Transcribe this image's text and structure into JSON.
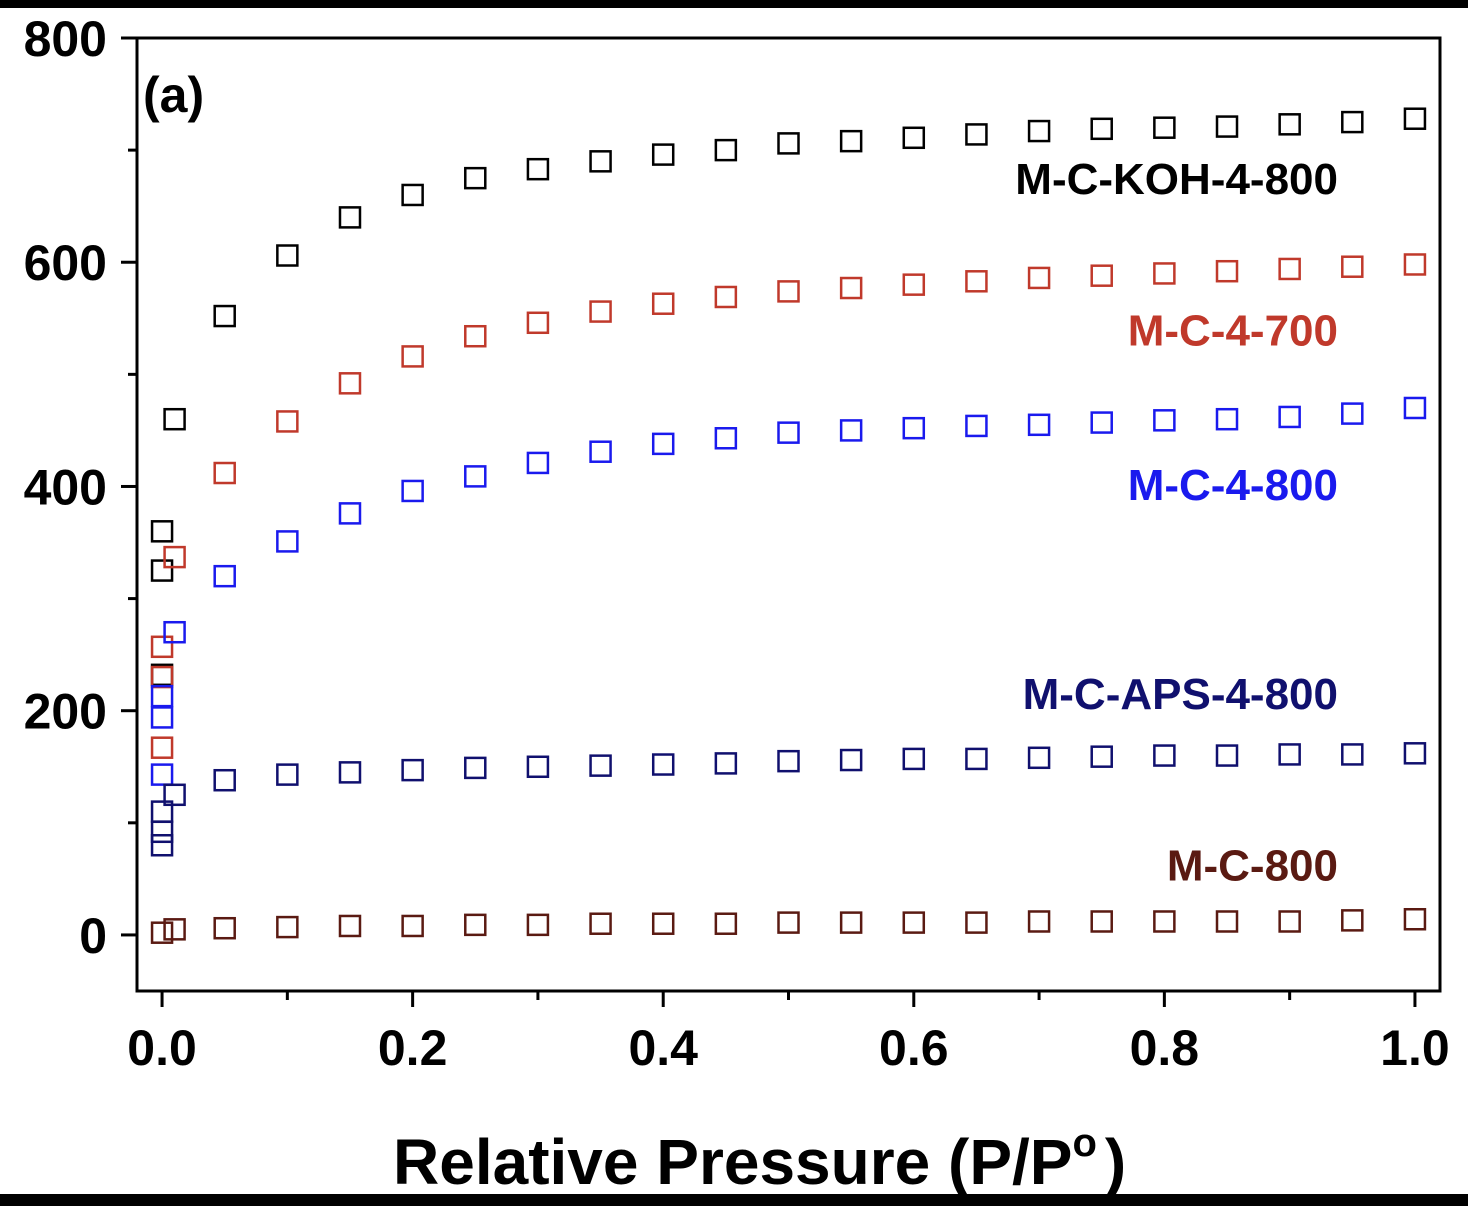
{
  "chart_data": {
    "type": "scatter",
    "panel_label": "(a)",
    "xlabel": "Relative Pressure (P/P",
    "xlabel_sup": "o",
    "xlabel_close": ")",
    "ylabel": "",
    "xlim": [
      -0.02,
      1.02
    ],
    "ylim": [
      -50,
      800
    ],
    "xticks": [
      0.0,
      0.1,
      0.2,
      0.3,
      0.4,
      0.5,
      0.6,
      0.7,
      0.8,
      0.9,
      1.0
    ],
    "xtick_labels": [
      "0.0",
      "",
      "0.2",
      "",
      "0.4",
      "",
      "0.6",
      "",
      "0.8",
      "",
      "1.0"
    ],
    "yticks": [
      0,
      100,
      200,
      300,
      400,
      500,
      600,
      700,
      800
    ],
    "ytick_labels": [
      "0",
      "",
      "200",
      "",
      "400",
      "",
      "600",
      "",
      "800"
    ],
    "grid": false,
    "marker": "open-square",
    "series": [
      {
        "name": "M-C-KOH-4-800",
        "color": "#000000",
        "label_y": 675,
        "x": [
          0.0,
          0.0,
          0.0,
          0.01,
          0.05,
          0.1,
          0.15,
          0.2,
          0.25,
          0.3,
          0.35,
          0.4,
          0.45,
          0.5,
          0.55,
          0.6,
          0.65,
          0.7,
          0.75,
          0.8,
          0.85,
          0.9,
          0.95,
          1.0
        ],
        "y": [
          232,
          325,
          360,
          460,
          552,
          606,
          640,
          660,
          675,
          683,
          690,
          696,
          700,
          706,
          708,
          711,
          714,
          717,
          719,
          720,
          721,
          723,
          725,
          728
        ]
      },
      {
        "name": "M-C-4-700",
        "color": "#c0392b",
        "label_y": 540,
        "x": [
          0.0,
          0.0,
          0.0,
          0.01,
          0.05,
          0.1,
          0.15,
          0.2,
          0.25,
          0.3,
          0.35,
          0.4,
          0.45,
          0.5,
          0.55,
          0.6,
          0.65,
          0.7,
          0.75,
          0.8,
          0.85,
          0.9,
          0.95,
          1.0
        ],
        "y": [
          167,
          230,
          257,
          337,
          412,
          458,
          492,
          516,
          534,
          546,
          556,
          563,
          569,
          574,
          577,
          580,
          583,
          586,
          588,
          590,
          592,
          594,
          596,
          598
        ]
      },
      {
        "name": "M-C-4-800",
        "color": "#1a1aee",
        "label_y": 402,
        "x": [
          0.0,
          0.0,
          0.0,
          0.01,
          0.05,
          0.1,
          0.15,
          0.2,
          0.25,
          0.3,
          0.35,
          0.4,
          0.45,
          0.5,
          0.55,
          0.6,
          0.65,
          0.7,
          0.75,
          0.8,
          0.85,
          0.9,
          0.95,
          1.0
        ],
        "y": [
          143,
          194,
          213,
          270,
          320,
          351,
          376,
          396,
          409,
          421,
          431,
          438,
          443,
          448,
          450,
          452,
          454,
          455,
          457,
          459,
          460,
          462,
          465,
          470
        ]
      },
      {
        "name": "M-C-APS-4-800",
        "color": "#10106e",
        "label_y": 216,
        "x": [
          0.0,
          0.0,
          0.0,
          0.01,
          0.05,
          0.1,
          0.15,
          0.2,
          0.25,
          0.3,
          0.35,
          0.4,
          0.45,
          0.5,
          0.55,
          0.6,
          0.65,
          0.7,
          0.75,
          0.8,
          0.85,
          0.9,
          0.95,
          1.0
        ],
        "y": [
          80,
          92,
          110,
          125,
          138,
          143,
          145,
          147,
          149,
          150,
          151,
          152,
          153,
          155,
          156,
          157,
          157,
          158,
          159,
          160,
          160,
          161,
          161,
          162
        ]
      },
      {
        "name": "M-C-800",
        "color": "#5a1a12",
        "label_y": 63,
        "x": [
          0.0,
          0.01,
          0.05,
          0.1,
          0.15,
          0.2,
          0.25,
          0.3,
          0.35,
          0.4,
          0.45,
          0.5,
          0.55,
          0.6,
          0.65,
          0.7,
          0.75,
          0.8,
          0.85,
          0.9,
          0.95,
          1.0
        ],
        "y": [
          2,
          5,
          6,
          7,
          8,
          8,
          9,
          9,
          10,
          10,
          10,
          11,
          11,
          11,
          11,
          12,
          12,
          12,
          12,
          12,
          13,
          14
        ]
      }
    ]
  }
}
